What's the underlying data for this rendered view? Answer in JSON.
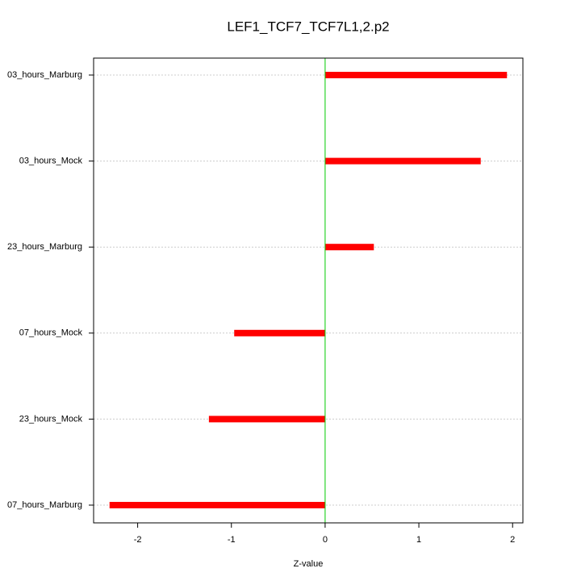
{
  "chart_data": {
    "type": "hbar",
    "title": "LEF1_TCF7_TCF7L1,2.p2",
    "categories": [
      "03_hours_Marburg",
      "03_hours_Mock",
      "23_hours_Marburg",
      "07_hours_Mock",
      "23_hours_Mock",
      "07_hours_Marburg"
    ],
    "values": [
      1.94,
      1.66,
      0.52,
      -0.97,
      -1.24,
      -2.3
    ],
    "color": "#ff0000",
    "zero_line_color": "#00cc00",
    "x_label": "Z-value",
    "xlim": [
      -2.47,
      2.11
    ],
    "xticks": [
      -2,
      -1,
      0,
      1,
      2
    ],
    "grid": true
  }
}
